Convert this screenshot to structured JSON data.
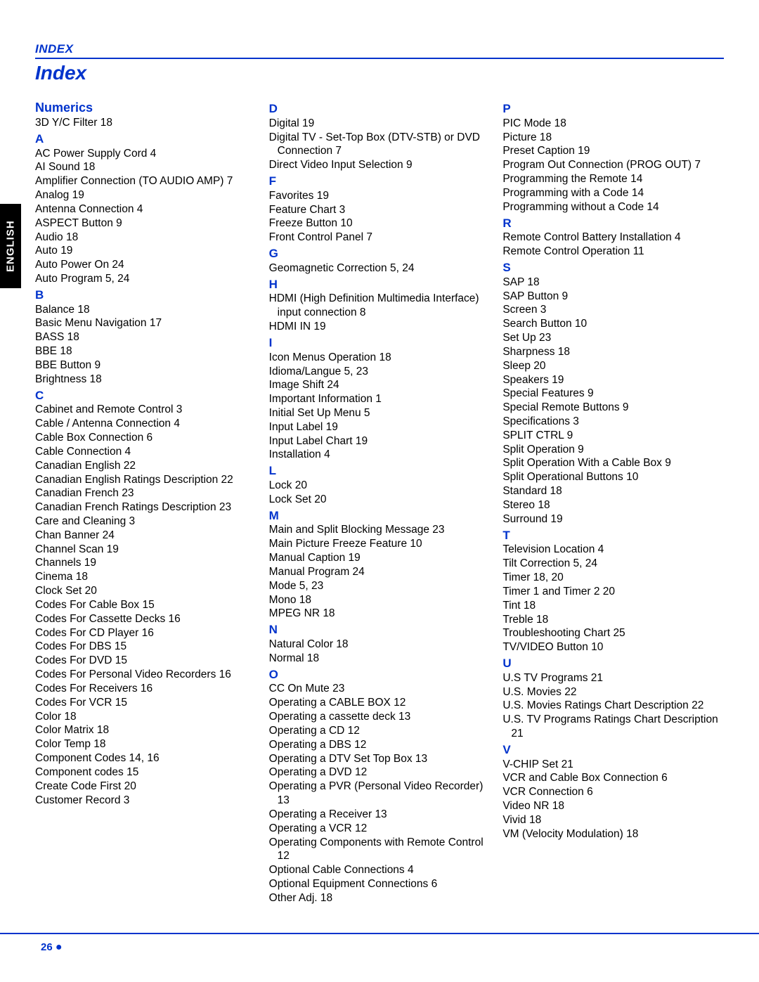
{
  "sideTab": "ENGLISH",
  "sectionHeader": "INDEX",
  "pageTitle": "Index",
  "pageNumber": "26",
  "columns": [
    [
      {
        "t": "h",
        "class": "numerics",
        "v": "Numerics"
      },
      {
        "t": "e",
        "v": "3D Y/C Filter 18"
      },
      {
        "t": "h",
        "class": "letter",
        "v": "A"
      },
      {
        "t": "e",
        "v": "AC Power Supply Cord 4"
      },
      {
        "t": "e",
        "v": "AI Sound 18"
      },
      {
        "t": "e",
        "v": "Amplifier Connection (TO AUDIO AMP) 7"
      },
      {
        "t": "e",
        "v": "Analog 19"
      },
      {
        "t": "e",
        "v": "Antenna Connection 4"
      },
      {
        "t": "e",
        "v": "ASPECT Button 9"
      },
      {
        "t": "e",
        "v": "Audio 18"
      },
      {
        "t": "e",
        "v": "Auto 19"
      },
      {
        "t": "e",
        "v": "Auto Power On 24"
      },
      {
        "t": "e",
        "v": "Auto Program 5, 24"
      },
      {
        "t": "h",
        "class": "letter",
        "v": "B"
      },
      {
        "t": "e",
        "v": "Balance 18"
      },
      {
        "t": "e",
        "v": "Basic Menu Navigation 17"
      },
      {
        "t": "e",
        "v": "BASS 18"
      },
      {
        "t": "e",
        "v": "BBE 18"
      },
      {
        "t": "e",
        "v": "BBE Button 9"
      },
      {
        "t": "e",
        "v": "Brightness 18"
      },
      {
        "t": "h",
        "class": "letter",
        "v": "C"
      },
      {
        "t": "e",
        "v": "Cabinet and Remote Control 3"
      },
      {
        "t": "e",
        "v": "Cable / Antenna Connection 4"
      },
      {
        "t": "e",
        "v": "Cable Box Connection 6"
      },
      {
        "t": "e",
        "v": "Cable Connection 4"
      },
      {
        "t": "e",
        "v": "Canadian English 22"
      },
      {
        "t": "e",
        "v": "Canadian English Ratings Description 22"
      },
      {
        "t": "e",
        "v": "Canadian French 23"
      },
      {
        "t": "e",
        "v": "Canadian French Ratings Description 23"
      },
      {
        "t": "e",
        "v": "Care and Cleaning 3"
      },
      {
        "t": "e",
        "v": "Chan Banner 24"
      },
      {
        "t": "e",
        "v": "Channel Scan 19"
      },
      {
        "t": "e",
        "v": "Channels 19"
      },
      {
        "t": "e",
        "v": "Cinema 18"
      },
      {
        "t": "e",
        "v": "Clock Set 20"
      },
      {
        "t": "e",
        "v": "Codes For Cable Box 15"
      },
      {
        "t": "e",
        "v": "Codes For Cassette Decks 16"
      },
      {
        "t": "e",
        "v": "Codes For CD Player 16"
      },
      {
        "t": "e",
        "v": "Codes For DBS 15"
      },
      {
        "t": "e",
        "v": "Codes For DVD 15"
      },
      {
        "t": "e",
        "v": "Codes For Personal Video Recorders 16"
      },
      {
        "t": "e",
        "v": "Codes For Receivers 16"
      },
      {
        "t": "e",
        "v": "Codes For VCR 15"
      },
      {
        "t": "e",
        "v": "Color 18"
      },
      {
        "t": "e",
        "v": "Color Matrix 18"
      },
      {
        "t": "e",
        "v": "Color Temp 18"
      },
      {
        "t": "e",
        "v": "Component Codes 14, 16"
      },
      {
        "t": "e",
        "v": "Component codes 15"
      },
      {
        "t": "e",
        "v": "Create Code First 20"
      },
      {
        "t": "e",
        "v": "Customer Record 3"
      }
    ],
    [
      {
        "t": "h",
        "class": "letter",
        "v": "D"
      },
      {
        "t": "e",
        "v": "Digital 19"
      },
      {
        "t": "e",
        "v": "Digital TV - Set-Top Box (DTV-STB) or DVD Connection 7"
      },
      {
        "t": "e",
        "v": "Direct Video Input Selection 9"
      },
      {
        "t": "h",
        "class": "letter",
        "v": "F"
      },
      {
        "t": "e",
        "v": "Favorites 19"
      },
      {
        "t": "e",
        "v": "Feature Chart 3"
      },
      {
        "t": "e",
        "v": "Freeze Button 10"
      },
      {
        "t": "e",
        "v": "Front Control Panel 7"
      },
      {
        "t": "h",
        "class": "letter",
        "v": "G"
      },
      {
        "t": "e",
        "v": "Geomagnetic Correction 5, 24"
      },
      {
        "t": "h",
        "class": "letter",
        "v": "H"
      },
      {
        "t": "e",
        "v": "HDMI (High Definition Multimedia Interface) input connection 8"
      },
      {
        "t": "e",
        "v": "HDMI IN 19"
      },
      {
        "t": "h",
        "class": "letter",
        "v": "I"
      },
      {
        "t": "e",
        "v": "Icon Menus Operation 18"
      },
      {
        "t": "e",
        "v": "Idioma/Langue 5, 23"
      },
      {
        "t": "e",
        "v": "Image Shift 24"
      },
      {
        "t": "e",
        "v": "Important Information 1"
      },
      {
        "t": "e",
        "v": "Initial Set Up Menu 5"
      },
      {
        "t": "e",
        "v": "Input Label 19"
      },
      {
        "t": "e",
        "v": "Input Label Chart 19"
      },
      {
        "t": "e",
        "v": "Installation 4"
      },
      {
        "t": "h",
        "class": "letter",
        "v": "L"
      },
      {
        "t": "e",
        "v": "Lock 20"
      },
      {
        "t": "e",
        "v": "Lock Set 20"
      },
      {
        "t": "h",
        "class": "letter",
        "v": "M"
      },
      {
        "t": "e",
        "v": "Main and Split Blocking Message 23"
      },
      {
        "t": "e",
        "v": "Main Picture Freeze Feature 10"
      },
      {
        "t": "e",
        "v": "Manual Caption 19"
      },
      {
        "t": "e",
        "v": "Manual Program 24"
      },
      {
        "t": "e",
        "v": "Mode 5, 23"
      },
      {
        "t": "e",
        "v": "Mono 18"
      },
      {
        "t": "e",
        "v": "MPEG NR 18"
      },
      {
        "t": "h",
        "class": "letter",
        "v": "N"
      },
      {
        "t": "e",
        "v": "Natural Color 18"
      },
      {
        "t": "e",
        "v": "Normal 18"
      },
      {
        "t": "h",
        "class": "letter",
        "v": "O"
      },
      {
        "t": "e",
        "v": "CC On Mute 23"
      },
      {
        "t": "e",
        "v": "Operating a CABLE BOX 12"
      },
      {
        "t": "e",
        "v": "Operating a cassette deck 13"
      },
      {
        "t": "e",
        "v": "Operating a CD 12"
      },
      {
        "t": "e",
        "v": "Operating a DBS 12"
      },
      {
        "t": "e",
        "v": "Operating a DTV Set Top Box 13"
      },
      {
        "t": "e",
        "v": "Operating a DVD 12"
      },
      {
        "t": "e",
        "v": "Operating a PVR (Personal Video Recorder) 13"
      },
      {
        "t": "e",
        "v": "Operating a Receiver 13"
      },
      {
        "t": "e",
        "v": "Operating a VCR 12"
      },
      {
        "t": "e",
        "v": "Operating Components with Remote Control 12"
      },
      {
        "t": "e",
        "v": "Optional Cable Connections 4"
      },
      {
        "t": "e",
        "v": "Optional Equipment Connections 6"
      },
      {
        "t": "e",
        "v": "Other Adj. 18"
      }
    ],
    [
      {
        "t": "h",
        "class": "letter",
        "v": "P"
      },
      {
        "t": "e",
        "v": "PIC Mode 18"
      },
      {
        "t": "e",
        "v": "Picture 18"
      },
      {
        "t": "e",
        "v": "Preset Caption 19"
      },
      {
        "t": "e",
        "v": "Program Out Connection (PROG OUT) 7"
      },
      {
        "t": "e",
        "v": "Programming the Remote 14"
      },
      {
        "t": "e",
        "v": "Programming with a Code 14"
      },
      {
        "t": "e",
        "v": "Programming without a Code 14"
      },
      {
        "t": "h",
        "class": "letter",
        "v": "R"
      },
      {
        "t": "e",
        "v": "Remote Control Battery Installation 4"
      },
      {
        "t": "e",
        "v": "Remote Control Operation 11"
      },
      {
        "t": "h",
        "class": "letter",
        "v": "S"
      },
      {
        "t": "e",
        "v": "SAP 18"
      },
      {
        "t": "e",
        "v": "SAP Button 9"
      },
      {
        "t": "e",
        "v": "Screen 3"
      },
      {
        "t": "e",
        "v": "Search Button 10"
      },
      {
        "t": "e",
        "v": "Set Up 23"
      },
      {
        "t": "e",
        "v": "Sharpness 18"
      },
      {
        "t": "e",
        "v": "Sleep 20"
      },
      {
        "t": "e",
        "v": "Speakers 19"
      },
      {
        "t": "e",
        "v": "Special Features 9"
      },
      {
        "t": "e",
        "v": "Special Remote Buttons 9"
      },
      {
        "t": "e",
        "v": "Specifications 3"
      },
      {
        "t": "e",
        "v": "SPLIT CTRL 9"
      },
      {
        "t": "e",
        "v": "Split Operation 9"
      },
      {
        "t": "e",
        "v": "Split Operation With a Cable Box 9"
      },
      {
        "t": "e",
        "v": "Split Operational Buttons 10"
      },
      {
        "t": "e",
        "v": "Standard 18"
      },
      {
        "t": "e",
        "v": "Stereo 18"
      },
      {
        "t": "e",
        "v": "Surround 19"
      },
      {
        "t": "h",
        "class": "letter",
        "v": "T"
      },
      {
        "t": "e",
        "v": "Television Location 4"
      },
      {
        "t": "e",
        "v": "Tilt Correction 5, 24"
      },
      {
        "t": "e",
        "v": "Timer 18, 20"
      },
      {
        "t": "e",
        "v": "Timer 1 and Timer 2 20"
      },
      {
        "t": "e",
        "v": "Tint 18"
      },
      {
        "t": "e",
        "v": "Treble 18"
      },
      {
        "t": "e",
        "v": "Troubleshooting Chart 25"
      },
      {
        "t": "e",
        "v": "TV/VIDEO Button 10"
      },
      {
        "t": "h",
        "class": "letter",
        "v": "U"
      },
      {
        "t": "e",
        "v": "U.S TV Programs 21"
      },
      {
        "t": "e",
        "v": "U.S. Movies 22"
      },
      {
        "t": "e",
        "v": "U.S. Movies Ratings Chart Description 22"
      },
      {
        "t": "e",
        "v": "U.S. TV Programs Ratings Chart Description 21"
      },
      {
        "t": "h",
        "class": "letter",
        "v": "V"
      },
      {
        "t": "e",
        "v": "V-CHIP Set 21"
      },
      {
        "t": "e",
        "v": "VCR and Cable Box Connection 6"
      },
      {
        "t": "e",
        "v": "VCR Connection 6"
      },
      {
        "t": "e",
        "v": "Video NR 18"
      },
      {
        "t": "e",
        "v": "Vivid 18"
      },
      {
        "t": "e",
        "v": "VM (Velocity Modulation) 18"
      }
    ]
  ]
}
